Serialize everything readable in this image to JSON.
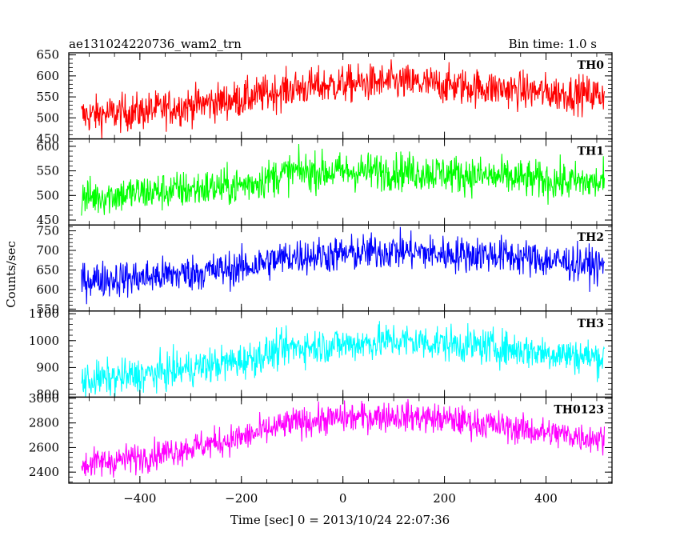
{
  "header": {
    "title": "ae131024220736_wam2_trn",
    "bin_time": "Bin time: 1.0 s"
  },
  "axes": {
    "xlabel": "Time [sec] 0 = 2013/10/24 22:07:36",
    "ylabel": "Counts/sec"
  },
  "chart_data": {
    "type": "line",
    "title": "ae131024220736_wam2_trn",
    "subtitle": "Bin time: 1.0 s",
    "xlabel": "Time [sec] 0 = 2013/10/24 22:07:36",
    "ylabel": "Counts/sec",
    "xlim": [
      -540,
      530
    ],
    "x_data_range": [
      -515,
      515
    ],
    "x_ticks": [
      -400,
      -200,
      0,
      200,
      400
    ],
    "x_tick_labels": [
      "−400",
      "−200",
      "0",
      "200",
      "400"
    ],
    "grid": false,
    "panels": [
      {
        "name": "TH0",
        "color": "#ff0000",
        "ylim": [
          450,
          655
        ],
        "y_ticks": [
          450,
          500,
          550,
          600,
          650
        ],
        "trend": [
          [
            -515,
            505
          ],
          [
            -400,
            515
          ],
          [
            -200,
            545
          ],
          [
            -100,
            570
          ],
          [
            0,
            580
          ],
          [
            100,
            585
          ],
          [
            200,
            578
          ],
          [
            300,
            570
          ],
          [
            400,
            560
          ],
          [
            515,
            555
          ]
        ],
        "noise_amplitude": 40
      },
      {
        "name": "TH1",
        "color": "#00ff00",
        "ylim": [
          440,
          615
        ],
        "y_ticks": [
          450,
          500,
          550,
          600
        ],
        "trend": [
          [
            -515,
            495
          ],
          [
            -400,
            505
          ],
          [
            -200,
            520
          ],
          [
            -100,
            548
          ],
          [
            0,
            548
          ],
          [
            100,
            550
          ],
          [
            200,
            545
          ],
          [
            300,
            538
          ],
          [
            400,
            530
          ],
          [
            515,
            525
          ]
        ],
        "noise_amplitude": 35
      },
      {
        "name": "TH2",
        "color": "#0000ff",
        "ylim": [
          545,
          765
        ],
        "y_ticks": [
          550,
          600,
          650,
          700,
          750
        ],
        "trend": [
          [
            -515,
            625
          ],
          [
            -400,
            630
          ],
          [
            -200,
            655
          ],
          [
            -100,
            685
          ],
          [
            0,
            690
          ],
          [
            100,
            700
          ],
          [
            200,
            690
          ],
          [
            300,
            690
          ],
          [
            400,
            675
          ],
          [
            515,
            660
          ]
        ],
        "noise_amplitude": 42
      },
      {
        "name": "TH3",
        "color": "#00ffff",
        "ylim": [
          790,
          1110
        ],
        "y_ticks": [
          800,
          900,
          1000,
          1100
        ],
        "trend": [
          [
            -515,
            850
          ],
          [
            -400,
            870
          ],
          [
            -200,
            925
          ],
          [
            -100,
            975
          ],
          [
            0,
            985
          ],
          [
            100,
            1000
          ],
          [
            200,
            990
          ],
          [
            300,
            975
          ],
          [
            400,
            955
          ],
          [
            515,
            935
          ]
        ],
        "noise_amplitude": 60
      },
      {
        "name": "TH0123",
        "color": "#ff00ff",
        "ylim": [
          2310,
          3010
        ],
        "y_ticks": [
          2400,
          2600,
          2800,
          3000
        ],
        "trend": [
          [
            -515,
            2460
          ],
          [
            -400,
            2520
          ],
          [
            -200,
            2680
          ],
          [
            -100,
            2800
          ],
          [
            0,
            2840
          ],
          [
            100,
            2860
          ],
          [
            200,
            2830
          ],
          [
            300,
            2780
          ],
          [
            400,
            2720
          ],
          [
            515,
            2670
          ]
        ],
        "noise_amplitude": 110
      }
    ]
  }
}
